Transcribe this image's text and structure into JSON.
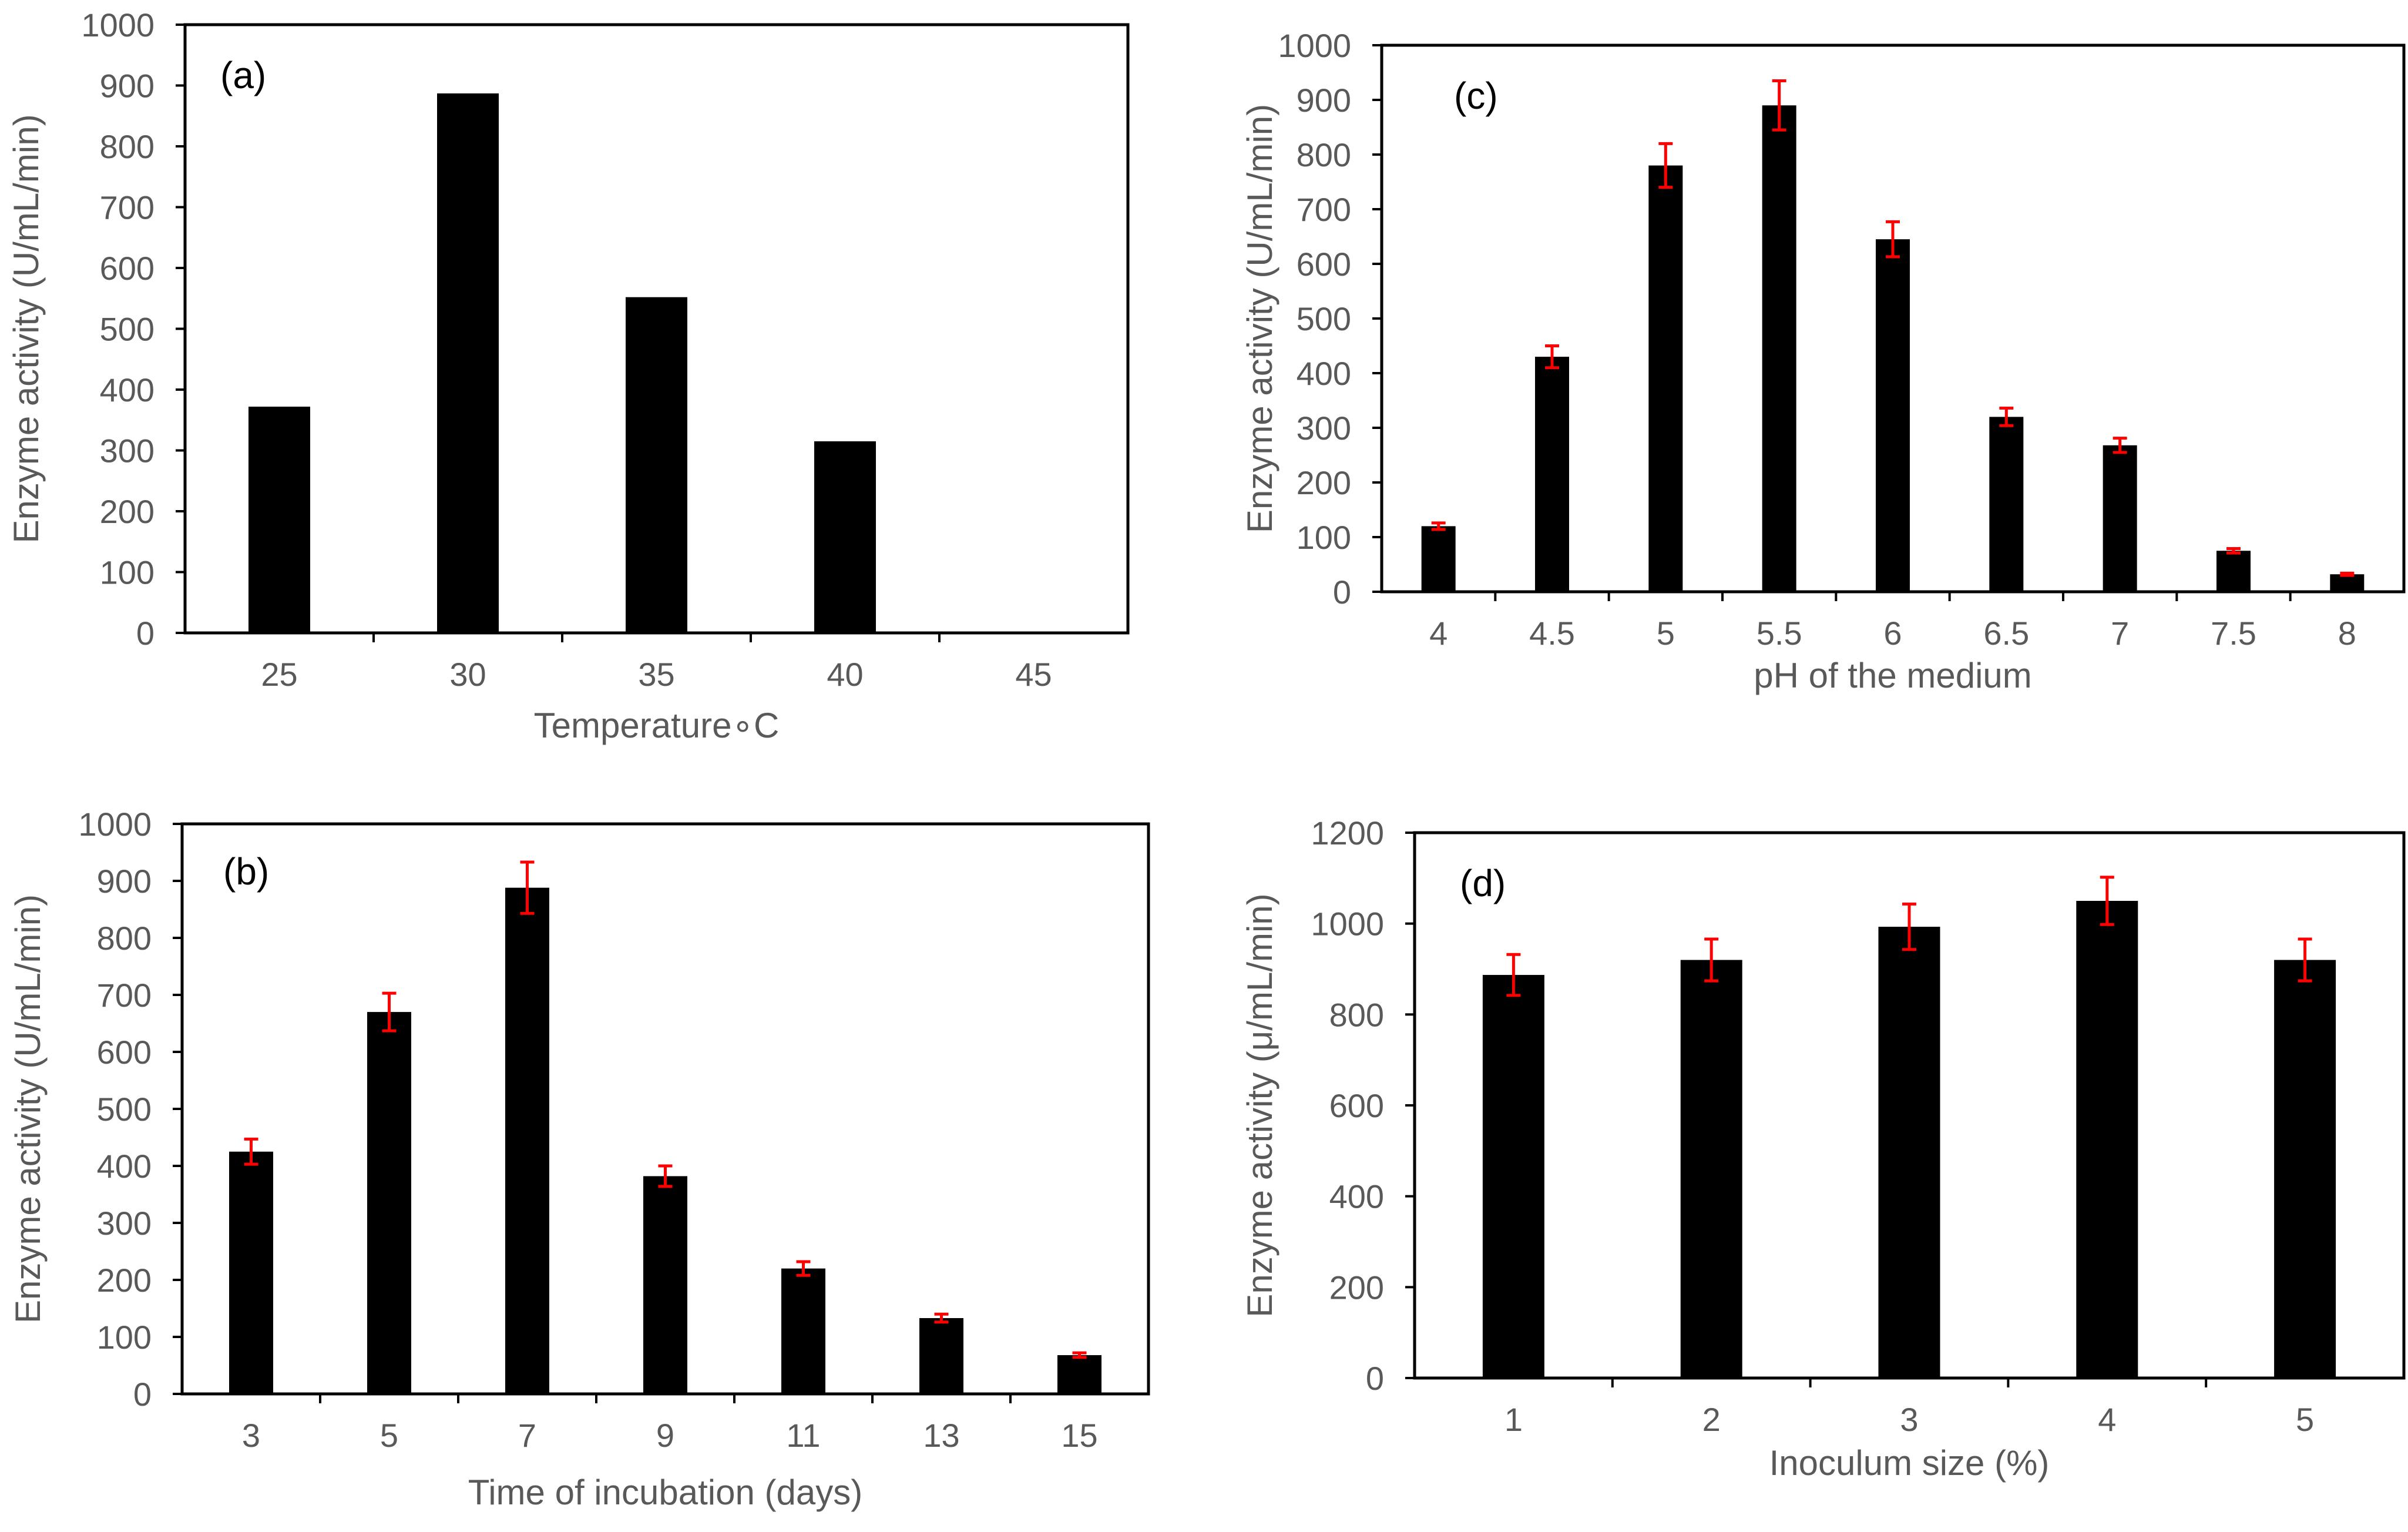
{
  "colors": {
    "bar": "#000000",
    "error_bar": "#ff0000",
    "text": "#595959"
  },
  "chart_data": [
    {
      "panel": "(a)",
      "type": "bar",
      "categories": [
        "25",
        "30",
        "35",
        "40",
        "45"
      ],
      "values": [
        372,
        887,
        552,
        315,
        0
      ],
      "errors": null,
      "xlabel": "Temperature∘C",
      "ylabel": "Enzyme activity (U/mL/min)",
      "ylim": [
        0,
        1000
      ],
      "yticks": [
        "0",
        "100",
        "200",
        "300",
        "400",
        "500",
        "600",
        "700",
        "800",
        "900",
        "1000"
      ]
    },
    {
      "panel": "(b)",
      "type": "bar",
      "categories": [
        "3",
        "5",
        "7",
        "9",
        "11",
        "13",
        "15"
      ],
      "values": [
        425,
        670,
        888,
        382,
        220,
        133,
        68
      ],
      "errors": [
        22,
        33,
        45,
        18,
        12,
        7,
        4
      ],
      "xlabel": "Time of incubation (days)",
      "ylabel": "Enzyme activity (U/mL/min)",
      "ylim": [
        0,
        1000
      ],
      "yticks": [
        "0",
        "100",
        "200",
        "300",
        "400",
        "500",
        "600",
        "700",
        "800",
        "900",
        "1000"
      ]
    },
    {
      "panel": "(c)",
      "type": "bar",
      "categories": [
        "4",
        "4.5",
        "5",
        "5.5",
        "6",
        "6.5",
        "7",
        "7.5",
        "8"
      ],
      "values": [
        120,
        430,
        780,
        890,
        645,
        320,
        268,
        75,
        32
      ],
      "errors": [
        6,
        20,
        40,
        45,
        32,
        16,
        13,
        4,
        2
      ],
      "xlabel": "pH of the medium",
      "ylabel": "Enzyme activity (U/mL/min)",
      "ylim": [
        0,
        1000
      ],
      "yticks": [
        "0",
        "100",
        "200",
        "300",
        "400",
        "500",
        "600",
        "700",
        "800",
        "900",
        "1000"
      ]
    },
    {
      "panel": "(d)",
      "type": "bar",
      "categories": [
        "1",
        "2",
        "3",
        "4",
        "5"
      ],
      "values": [
        887,
        920,
        993,
        1050,
        920
      ],
      "errors": [
        45,
        46,
        50,
        52,
        46
      ],
      "xlabel": "Inoculum size (%)",
      "ylabel": "Enzyme activity (μ/mL/min)",
      "ylim": [
        0,
        1200
      ],
      "yticks": [
        "0",
        "200",
        "400",
        "600",
        "800",
        "1000",
        "1200"
      ]
    }
  ]
}
